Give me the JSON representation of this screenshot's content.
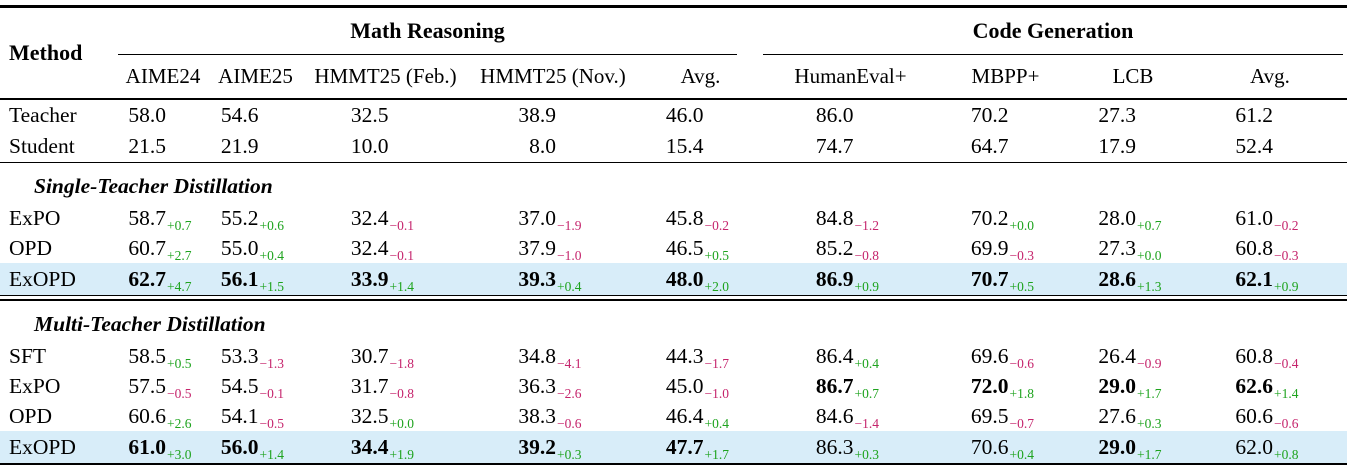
{
  "table": {
    "method_header": "Method",
    "groups": [
      {
        "label": "Math Reasoning"
      },
      {
        "label": "Code Generation"
      }
    ],
    "columns": [
      "AIME24",
      "AIME25",
      "HMMT25 (Feb.)",
      "HMMT25 (Nov.)",
      "Avg.",
      "HumanEval+",
      "MBPP+",
      "LCB",
      "Avg."
    ],
    "colors": {
      "positive": "#1ea31e",
      "negative": "#c5246c",
      "highlight": "#d8edf9"
    },
    "sections": [
      {
        "header": null,
        "rule_after": "single",
        "rows": [
          {
            "method": "Teacher",
            "highlight": false,
            "baseline": true,
            "cells": [
              {
                "v": "58.0",
                "d": "",
                "b": false
              },
              {
                "v": "54.6",
                "d": "",
                "b": false
              },
              {
                "v": "32.5",
                "d": "",
                "b": false
              },
              {
                "v": "38.9",
                "d": "",
                "b": false
              },
              {
                "v": "46.0",
                "d": "",
                "b": false
              },
              {
                "v": "86.0",
                "d": "",
                "b": false
              },
              {
                "v": "70.2",
                "d": "",
                "b": false
              },
              {
                "v": "27.3",
                "d": "",
                "b": false
              },
              {
                "v": "61.2",
                "d": "",
                "b": false
              }
            ]
          },
          {
            "method": "Student",
            "highlight": false,
            "baseline": true,
            "cells": [
              {
                "v": "21.5",
                "d": "",
                "b": false
              },
              {
                "v": "21.9",
                "d": "",
                "b": false
              },
              {
                "v": "10.0",
                "d": "",
                "b": false
              },
              {
                "v": "8.0",
                "d": "",
                "b": false
              },
              {
                "v": "15.4",
                "d": "",
                "b": false
              },
              {
                "v": "74.7",
                "d": "",
                "b": false
              },
              {
                "v": "64.7",
                "d": "",
                "b": false
              },
              {
                "v": "17.9",
                "d": "",
                "b": false
              },
              {
                "v": "52.4",
                "d": "",
                "b": false
              }
            ]
          }
        ]
      },
      {
        "header": "Single-Teacher Distillation",
        "rule_after": "double",
        "rows": [
          {
            "method": "ExPO",
            "highlight": false,
            "baseline": false,
            "cells": [
              {
                "v": "58.7",
                "d": "+0.7",
                "b": false
              },
              {
                "v": "55.2",
                "d": "+0.6",
                "b": false
              },
              {
                "v": "32.4",
                "d": "−0.1",
                "b": false
              },
              {
                "v": "37.0",
                "d": "−1.9",
                "b": false
              },
              {
                "v": "45.8",
                "d": "−0.2",
                "b": false
              },
              {
                "v": "84.8",
                "d": "−1.2",
                "b": false
              },
              {
                "v": "70.2",
                "d": "+0.0",
                "b": false
              },
              {
                "v": "28.0",
                "d": "+0.7",
                "b": false
              },
              {
                "v": "61.0",
                "d": "−0.2",
                "b": false
              }
            ]
          },
          {
            "method": "OPD",
            "highlight": false,
            "baseline": false,
            "cells": [
              {
                "v": "60.7",
                "d": "+2.7",
                "b": false
              },
              {
                "v": "55.0",
                "d": "+0.4",
                "b": false
              },
              {
                "v": "32.4",
                "d": "−0.1",
                "b": false
              },
              {
                "v": "37.9",
                "d": "−1.0",
                "b": false
              },
              {
                "v": "46.5",
                "d": "+0.5",
                "b": false
              },
              {
                "v": "85.2",
                "d": "−0.8",
                "b": false
              },
              {
                "v": "69.9",
                "d": "−0.3",
                "b": false
              },
              {
                "v": "27.3",
                "d": "+0.0",
                "b": false
              },
              {
                "v": "60.8",
                "d": "−0.3",
                "b": false
              }
            ]
          },
          {
            "method": "ExOPD",
            "highlight": true,
            "baseline": false,
            "cells": [
              {
                "v": "62.7",
                "d": "+4.7",
                "b": true
              },
              {
                "v": "56.1",
                "d": "+1.5",
                "b": true
              },
              {
                "v": "33.9",
                "d": "+1.4",
                "b": true
              },
              {
                "v": "39.3",
                "d": "+0.4",
                "b": true
              },
              {
                "v": "48.0",
                "d": "+2.0",
                "b": true
              },
              {
                "v": "86.9",
                "d": "+0.9",
                "b": true
              },
              {
                "v": "70.7",
                "d": "+0.5",
                "b": true
              },
              {
                "v": "28.6",
                "d": "+1.3",
                "b": true
              },
              {
                "v": "62.1",
                "d": "+0.9",
                "b": true
              }
            ]
          }
        ]
      },
      {
        "header": "Multi-Teacher Distillation",
        "rule_after": "none",
        "rows": [
          {
            "method": "SFT",
            "highlight": false,
            "baseline": false,
            "cells": [
              {
                "v": "58.5",
                "d": "+0.5",
                "b": false
              },
              {
                "v": "53.3",
                "d": "−1.3",
                "b": false
              },
              {
                "v": "30.7",
                "d": "−1.8",
                "b": false
              },
              {
                "v": "34.8",
                "d": "−4.1",
                "b": false
              },
              {
                "v": "44.3",
                "d": "−1.7",
                "b": false
              },
              {
                "v": "86.4",
                "d": "+0.4",
                "b": false
              },
              {
                "v": "69.6",
                "d": "−0.6",
                "b": false
              },
              {
                "v": "26.4",
                "d": "−0.9",
                "b": false
              },
              {
                "v": "60.8",
                "d": "−0.4",
                "b": false
              }
            ]
          },
          {
            "method": "ExPO",
            "highlight": false,
            "baseline": false,
            "cells": [
              {
                "v": "57.5",
                "d": "−0.5",
                "b": false
              },
              {
                "v": "54.5",
                "d": "−0.1",
                "b": false
              },
              {
                "v": "31.7",
                "d": "−0.8",
                "b": false
              },
              {
                "v": "36.3",
                "d": "−2.6",
                "b": false
              },
              {
                "v": "45.0",
                "d": "−1.0",
                "b": false
              },
              {
                "v": "86.7",
                "d": "+0.7",
                "b": true
              },
              {
                "v": "72.0",
                "d": "+1.8",
                "b": true
              },
              {
                "v": "29.0",
                "d": "+1.7",
                "b": true
              },
              {
                "v": "62.6",
                "d": "+1.4",
                "b": true
              }
            ]
          },
          {
            "method": "OPD",
            "highlight": false,
            "baseline": false,
            "cells": [
              {
                "v": "60.6",
                "d": "+2.6",
                "b": false
              },
              {
                "v": "54.1",
                "d": "−0.5",
                "b": false
              },
              {
                "v": "32.5",
                "d": "+0.0",
                "b": false
              },
              {
                "v": "38.3",
                "d": "−0.6",
                "b": false
              },
              {
                "v": "46.4",
                "d": "+0.4",
                "b": false
              },
              {
                "v": "84.6",
                "d": "−1.4",
                "b": false
              },
              {
                "v": "69.5",
                "d": "−0.7",
                "b": false
              },
              {
                "v": "27.6",
                "d": "+0.3",
                "b": false
              },
              {
                "v": "60.6",
                "d": "−0.6",
                "b": false
              }
            ]
          },
          {
            "method": "ExOPD",
            "highlight": true,
            "baseline": false,
            "cells": [
              {
                "v": "61.0",
                "d": "+3.0",
                "b": true
              },
              {
                "v": "56.0",
                "d": "+1.4",
                "b": true
              },
              {
                "v": "34.4",
                "d": "+1.9",
                "b": true
              },
              {
                "v": "39.2",
                "d": "+0.3",
                "b": true
              },
              {
                "v": "47.7",
                "d": "+1.7",
                "b": true
              },
              {
                "v": "86.3",
                "d": "+0.3",
                "b": false
              },
              {
                "v": "70.6",
                "d": "+0.4",
                "b": false
              },
              {
                "v": "29.0",
                "d": "+1.7",
                "b": true
              },
              {
                "v": "62.0",
                "d": "+0.8",
                "b": false
              }
            ]
          }
        ]
      }
    ]
  }
}
